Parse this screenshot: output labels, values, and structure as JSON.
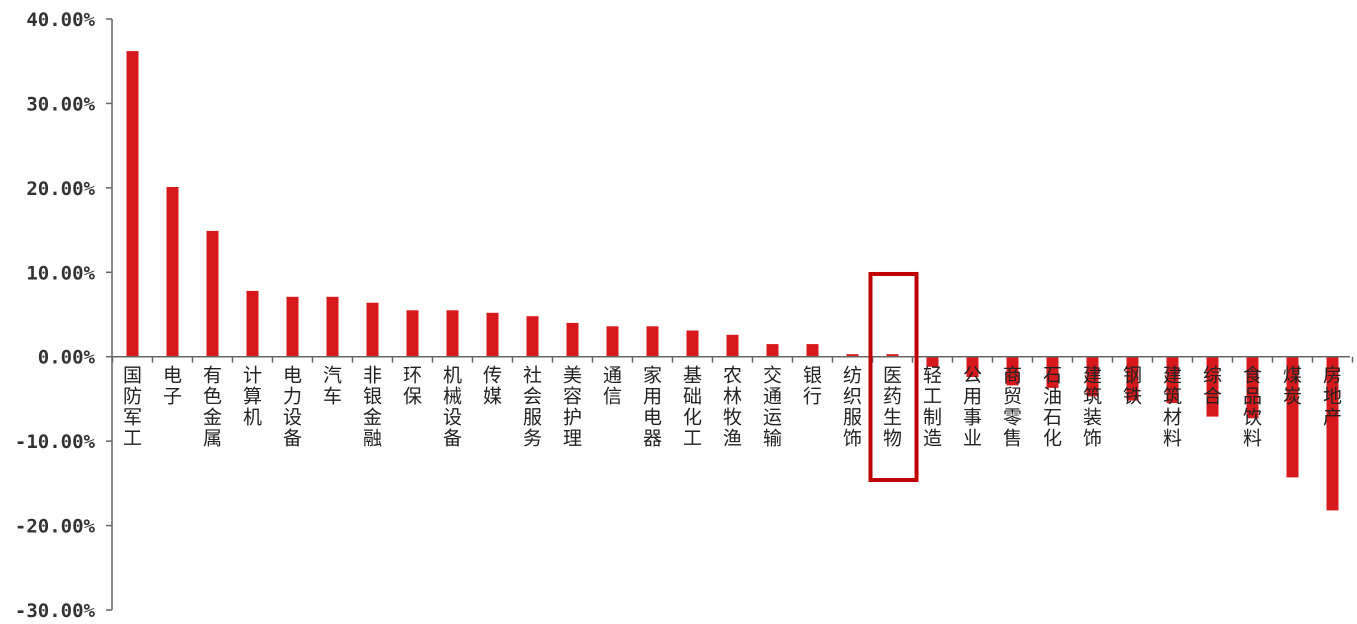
{
  "chart_data": {
    "type": "bar",
    "title": "",
    "xlabel": "",
    "ylabel": "",
    "ylim": [
      -30,
      40
    ],
    "yticks": [
      40,
      30,
      20,
      10,
      0,
      -10,
      -20,
      -30
    ],
    "ytick_labels": [
      "40.00%",
      "30.00%",
      "20.00%",
      "10.00%",
      "0.00%",
      "-10.00%",
      "-20.00%",
      "-30.00%"
    ],
    "categories": [
      "国防军工",
      "电子",
      "有色金属",
      "计算机",
      "电力设备",
      "汽车",
      "非银金融",
      "环保",
      "机械设备",
      "传媒",
      "社会服务",
      "美容护理",
      "通信",
      "家用电器",
      "基础化工",
      "农林牧渔",
      "交通运输",
      "银行",
      "纺织服饰",
      "医药生物",
      "轻工制造",
      "公用事业",
      "商贸零售",
      "石油石化",
      "建筑装饰",
      "钢铁",
      "建筑材料",
      "综合",
      "食品饮料",
      "煤炭",
      "房地产"
    ],
    "values": [
      36.2,
      20.1,
      14.9,
      7.8,
      7.1,
      7.1,
      6.4,
      5.5,
      5.5,
      5.2,
      4.8,
      4.0,
      3.6,
      3.6,
      3.1,
      2.6,
      1.5,
      1.5,
      0.3,
      0.3,
      -1.2,
      -2.4,
      -3.4,
      -3.7,
      -4.7,
      -5.2,
      -5.5,
      -7.1,
      -7.3,
      -14.3,
      -18.2
    ],
    "bar_color": "#d7191c",
    "highlight": {
      "category": "医药生物",
      "color": "#c00000"
    },
    "grid": false,
    "legend": "none"
  }
}
